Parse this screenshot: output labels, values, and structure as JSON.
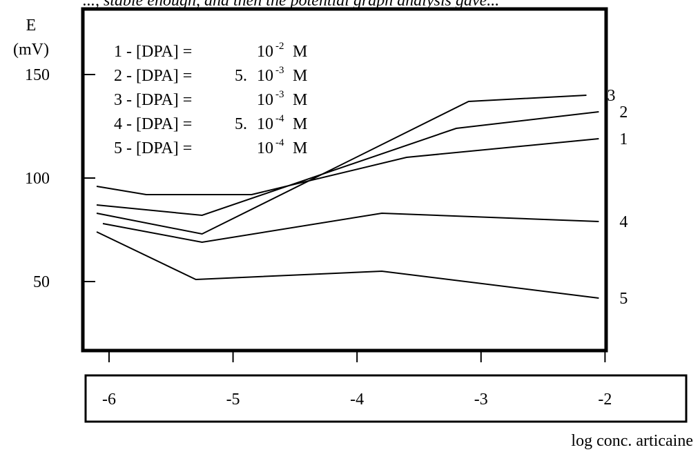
{
  "header_fragment": "..., stable enough, and then the potential graph analysis gave...",
  "chart_data": {
    "type": "line",
    "xlabel": "log conc. articaine",
    "ylabel": "E",
    "ylabel_unit": "(mV)",
    "xlim": [
      -6.1,
      -1.98
    ],
    "ylim": [
      26,
      176
    ],
    "x_ticks": [
      -6,
      -5,
      -4,
      -3,
      -2
    ],
    "x_tick_labels": [
      "-6",
      "-5",
      "-4",
      "-3",
      "-2"
    ],
    "y_ticks": [
      50,
      100,
      150
    ],
    "y_tick_labels": [
      "50",
      "100",
      "150"
    ],
    "grid": false,
    "legend_position": "top-left",
    "legend": [
      {
        "num": "1 - [DPA] = ",
        "coef": "",
        "base": "10",
        "exp": "-2",
        "unit": " M"
      },
      {
        "num": "2 - [DPA] = ",
        "coef": "5. ",
        "base": "10",
        "exp": "-3",
        "unit": " M"
      },
      {
        "num": "3 - [DPA] = ",
        "coef": "",
        "base": "10",
        "exp": "-3",
        "unit": " M"
      },
      {
        "num": "4 - [DPA] = ",
        "coef": "5. ",
        "base": "10",
        "exp": "-4",
        "unit": " M"
      },
      {
        "num": "5 - [DPA] = ",
        "coef": "",
        "base": "10",
        "exp": "-4",
        "unit": " M"
      }
    ],
    "series": [
      {
        "label": "1",
        "x": [
          -6.1,
          -5.7,
          -4.85,
          -3.6,
          -2.05
        ],
        "y": [
          96,
          92,
          92,
          110,
          119
        ]
      },
      {
        "label": "2",
        "x": [
          -6.1,
          -5.25,
          -3.2,
          -2.05
        ],
        "y": [
          87,
          82,
          124,
          132
        ]
      },
      {
        "label": "3",
        "x": [
          -6.1,
          -5.25,
          -3.1,
          -2.15
        ],
        "y": [
          83,
          73,
          137,
          140
        ]
      },
      {
        "label": "4",
        "x": [
          -6.05,
          -5.25,
          -3.8,
          -2.05
        ],
        "y": [
          78,
          69,
          83,
          79
        ]
      },
      {
        "label": "5",
        "x": [
          -6.1,
          -5.3,
          -3.8,
          -2.05
        ],
        "y": [
          74,
          51,
          55,
          42
        ]
      }
    ]
  }
}
